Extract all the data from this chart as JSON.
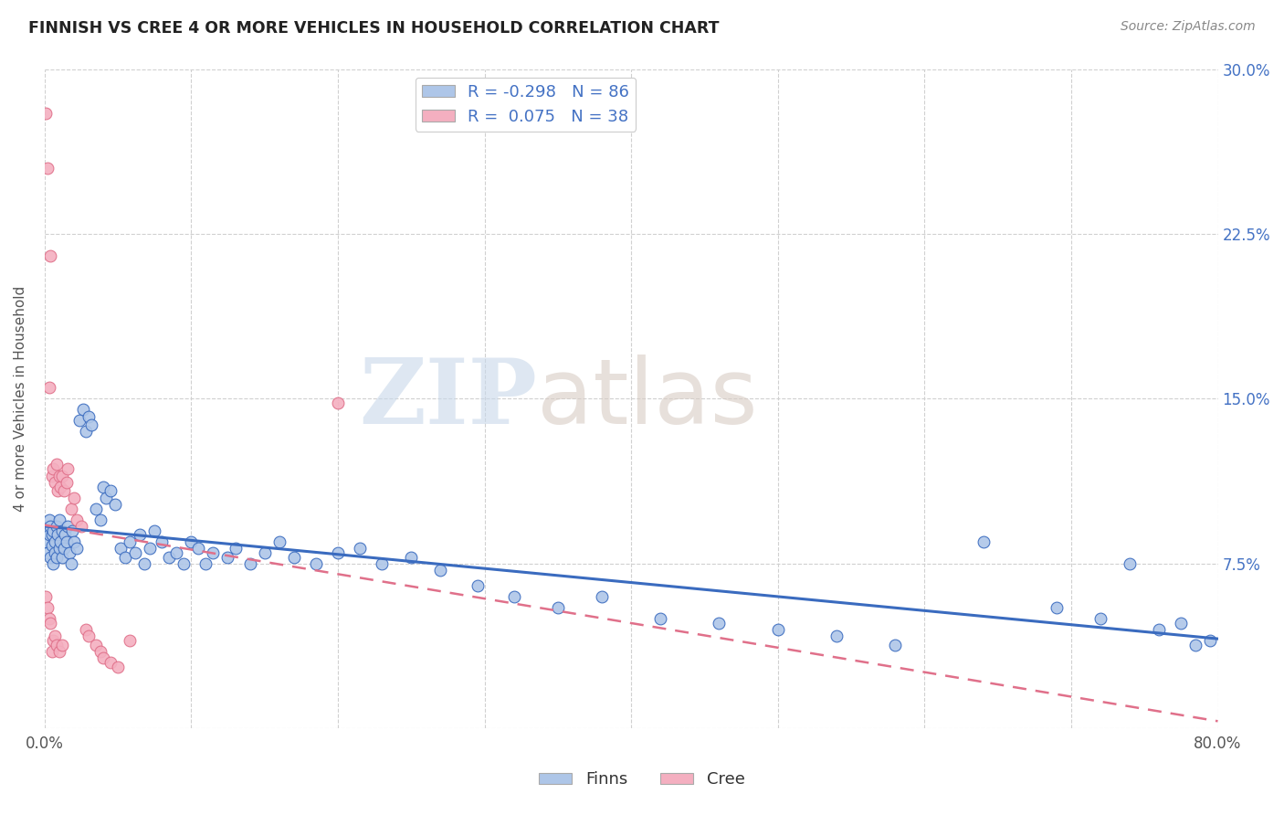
{
  "title": "FINNISH VS CREE 4 OR MORE VEHICLES IN HOUSEHOLD CORRELATION CHART",
  "source": "Source: ZipAtlas.com",
  "ylabel": "4 or more Vehicles in Household",
  "xlim": [
    0.0,
    0.8
  ],
  "ylim": [
    0.0,
    0.3
  ],
  "r_finns": -0.298,
  "n_finns": 86,
  "r_cree": 0.075,
  "n_cree": 38,
  "finns_color": "#aec6e8",
  "cree_color": "#f4afc0",
  "finns_line_color": "#3a6bbf",
  "cree_line_color": "#e0708a",
  "finns_x": [
    0.001,
    0.002,
    0.002,
    0.003,
    0.003,
    0.004,
    0.004,
    0.005,
    0.005,
    0.006,
    0.006,
    0.007,
    0.007,
    0.008,
    0.008,
    0.009,
    0.01,
    0.01,
    0.011,
    0.012,
    0.012,
    0.013,
    0.014,
    0.015,
    0.016,
    0.017,
    0.018,
    0.019,
    0.02,
    0.022,
    0.024,
    0.026,
    0.028,
    0.03,
    0.032,
    0.035,
    0.038,
    0.04,
    0.042,
    0.045,
    0.048,
    0.052,
    0.055,
    0.058,
    0.062,
    0.065,
    0.068,
    0.072,
    0.075,
    0.08,
    0.085,
    0.09,
    0.095,
    0.1,
    0.105,
    0.11,
    0.115,
    0.125,
    0.13,
    0.14,
    0.15,
    0.16,
    0.17,
    0.185,
    0.2,
    0.215,
    0.23,
    0.25,
    0.27,
    0.295,
    0.32,
    0.35,
    0.38,
    0.42,
    0.46,
    0.5,
    0.54,
    0.58,
    0.64,
    0.69,
    0.72,
    0.74,
    0.76,
    0.775,
    0.785,
    0.795
  ],
  "finns_y": [
    0.085,
    0.09,
    0.08,
    0.095,
    0.088,
    0.078,
    0.092,
    0.083,
    0.088,
    0.075,
    0.09,
    0.085,
    0.08,
    0.092,
    0.078,
    0.088,
    0.095,
    0.082,
    0.085,
    0.09,
    0.078,
    0.082,
    0.088,
    0.085,
    0.092,
    0.08,
    0.075,
    0.09,
    0.085,
    0.082,
    0.14,
    0.145,
    0.135,
    0.142,
    0.138,
    0.1,
    0.095,
    0.11,
    0.105,
    0.108,
    0.102,
    0.082,
    0.078,
    0.085,
    0.08,
    0.088,
    0.075,
    0.082,
    0.09,
    0.085,
    0.078,
    0.08,
    0.075,
    0.085,
    0.082,
    0.075,
    0.08,
    0.078,
    0.082,
    0.075,
    0.08,
    0.085,
    0.078,
    0.075,
    0.08,
    0.082,
    0.075,
    0.078,
    0.072,
    0.065,
    0.06,
    0.055,
    0.06,
    0.05,
    0.048,
    0.045,
    0.042,
    0.038,
    0.085,
    0.055,
    0.05,
    0.075,
    0.045,
    0.048,
    0.038,
    0.04
  ],
  "cree_x": [
    0.001,
    0.001,
    0.002,
    0.002,
    0.003,
    0.003,
    0.004,
    0.004,
    0.005,
    0.005,
    0.006,
    0.006,
    0.007,
    0.007,
    0.008,
    0.008,
    0.009,
    0.01,
    0.01,
    0.011,
    0.012,
    0.012,
    0.013,
    0.015,
    0.016,
    0.018,
    0.02,
    0.022,
    0.025,
    0.028,
    0.03,
    0.035,
    0.038,
    0.04,
    0.045,
    0.05,
    0.058,
    0.2
  ],
  "cree_y": [
    0.28,
    0.06,
    0.255,
    0.055,
    0.155,
    0.05,
    0.215,
    0.048,
    0.115,
    0.035,
    0.118,
    0.04,
    0.112,
    0.042,
    0.12,
    0.038,
    0.108,
    0.115,
    0.035,
    0.11,
    0.115,
    0.038,
    0.108,
    0.112,
    0.118,
    0.1,
    0.105,
    0.095,
    0.092,
    0.045,
    0.042,
    0.038,
    0.035,
    0.032,
    0.03,
    0.028,
    0.04,
    0.148
  ]
}
